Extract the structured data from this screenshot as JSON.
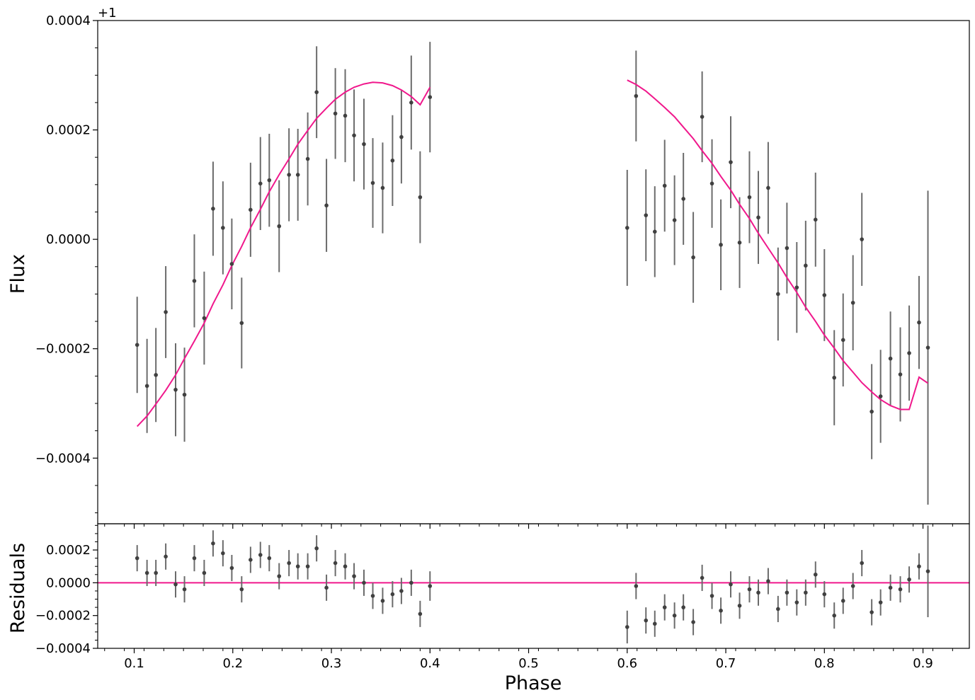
{
  "chart_data": [
    {
      "type": "scatter",
      "panel": "flux",
      "ylabel": "Flux",
      "y_offset_label": "+1",
      "xlim": [
        0.063,
        0.947
      ],
      "ylim": [
        -0.00052,
        0.0004
      ],
      "yticks": [
        -0.0004,
        -0.0002,
        0.0,
        0.0002,
        0.0004
      ],
      "ytick_labels": [
        "−0.0004",
        "−0.0002",
        "0.0000",
        "0.0002",
        "0.0004"
      ],
      "data_color": "#404040",
      "model_color": "#f0188c",
      "points": {
        "x": [
          0.103,
          0.113,
          0.122,
          0.132,
          0.142,
          0.151,
          0.161,
          0.171,
          0.18,
          0.19,
          0.199,
          0.209,
          0.218,
          0.228,
          0.237,
          0.247,
          0.257,
          0.266,
          0.276,
          0.285,
          0.295,
          0.304,
          0.314,
          0.323,
          0.333,
          0.342,
          0.352,
          0.362,
          0.371,
          0.381,
          0.39,
          0.4,
          0.6,
          0.609,
          0.619,
          0.628,
          0.638,
          0.648,
          0.657,
          0.667,
          0.676,
          0.686,
          0.695,
          0.705,
          0.714,
          0.724,
          0.733,
          0.743,
          0.753,
          0.762,
          0.772,
          0.781,
          0.791,
          0.8,
          0.81,
          0.819,
          0.829,
          0.838,
          0.848,
          0.857,
          0.867,
          0.877,
          0.886,
          0.896,
          0.905
        ],
        "y": [
          -0.000193,
          -0.000268,
          -0.000248,
          -0.000133,
          -0.000275,
          -0.000284,
          -7.6e-05,
          -0.000144,
          5.6e-05,
          2.1e-05,
          -4.5e-05,
          -0.000153,
          5.4e-05,
          0.000102,
          0.000108,
          2.4e-05,
          0.000118,
          0.000118,
          0.000147,
          0.000269,
          6.2e-05,
          0.00023,
          0.000226,
          0.00019,
          0.000174,
          0.000103,
          9.4e-05,
          0.000144,
          0.000187,
          0.00025,
          7.7e-05,
          0.00026,
          2.1e-05,
          0.000262,
          4.4e-05,
          1.4e-05,
          9.8e-05,
          3.5e-05,
          7.4e-05,
          -3.3e-05,
          0.000224,
          0.000102,
          -1e-05,
          0.000141,
          -6e-06,
          7.7e-05,
          4e-05,
          9.4e-05,
          -0.0001,
          -1.6e-05,
          -8.8e-05,
          -4.8e-05,
          3.6e-05,
          -0.000102,
          -0.000253,
          -0.000184,
          -0.000116,
          0.0,
          -0.000315,
          -0.000287,
          -0.000218,
          -0.000247,
          -0.000208,
          -0.000152,
          -0.000198
        ],
        "yerr": [
          8.8e-05,
          8.6e-05,
          8.6e-05,
          8.4e-05,
          8.5e-05,
          8.6e-05,
          8.5e-05,
          8.5e-05,
          8.6e-05,
          8.5e-05,
          8.3e-05,
          8.3e-05,
          8.6e-05,
          8.5e-05,
          8.5e-05,
          8.4e-05,
          8.5e-05,
          8.4e-05,
          8.5e-05,
          8.4e-05,
          8.5e-05,
          8.3e-05,
          8.5e-05,
          8.4e-05,
          8.3e-05,
          8.2e-05,
          8.3e-05,
          8.3e-05,
          8.5e-05,
          8.6e-05,
          8.4e-05,
          0.000101,
          0.000106,
          8.3e-05,
          8.4e-05,
          8.3e-05,
          8.4e-05,
          8.2e-05,
          8.4e-05,
          8.3e-05,
          8.3e-05,
          8.1e-05,
          8.3e-05,
          8.4e-05,
          8.3e-05,
          8.4e-05,
          8.5e-05,
          8.4e-05,
          8.5e-05,
          8.3e-05,
          8.3e-05,
          8.2e-05,
          8.6e-05,
          8.4e-05,
          8.7e-05,
          8.5e-05,
          8.7e-05,
          8.5e-05,
          8.7e-05,
          8.5e-05,
          8.6e-05,
          8.6e-05,
          8.7e-05,
          8.5e-05,
          0.000287
        ]
      },
      "model": {
        "segments": [
          {
            "x": [
              0.103,
              0.113,
              0.122,
              0.132,
              0.142,
              0.151,
              0.161,
              0.171,
              0.18,
              0.19,
              0.199,
              0.209,
              0.218,
              0.228,
              0.237,
              0.247,
              0.257,
              0.266,
              0.276,
              0.285,
              0.295,
              0.304,
              0.314,
              0.323,
              0.333,
              0.342,
              0.352,
              0.362,
              0.371,
              0.381,
              0.39,
              0.4
            ],
            "y": [
              -0.000342,
              -0.000323,
              -0.000301,
              -0.000276,
              -0.000248,
              -0.000218,
              -0.000186,
              -0.000153,
              -0.000118,
              -8.3e-05,
              -4.8e-05,
              -1.3e-05,
              2.1e-05,
              5.5e-05,
              8.7e-05,
              0.000118,
              0.000147,
              0.000174,
              0.000199,
              0.000221,
              0.00024,
              0.000256,
              0.000269,
              0.000278,
              0.000284,
              0.000287,
              0.000286,
              0.000281,
              0.000273,
              0.000261,
              0.000246,
              0.000278
            ]
          },
          {
            "x": [
              0.6,
              0.609,
              0.619,
              0.628,
              0.638,
              0.648,
              0.657,
              0.667,
              0.676,
              0.686,
              0.695,
              0.705,
              0.714,
              0.724,
              0.733,
              0.743,
              0.753,
              0.762,
              0.772,
              0.781,
              0.791,
              0.8,
              0.81,
              0.819,
              0.829,
              0.838,
              0.848,
              0.857,
              0.867,
              0.877,
              0.886,
              0.896,
              0.905
            ],
            "y": [
              0.000291,
              0.000283,
              0.000271,
              0.000257,
              0.000241,
              0.000224,
              0.000205,
              0.000184,
              0.000162,
              0.000139,
              0.000115,
              9e-05,
              6.4e-05,
              3.8e-05,
              1.1e-05,
              -1.6e-05,
              -4.3e-05,
              -7e-05,
              -9.7e-05,
              -0.000124,
              -0.00015,
              -0.000175,
              -0.000199,
              -0.000222,
              -0.000243,
              -0.000262,
              -0.000279,
              -0.000293,
              -0.000304,
              -0.000311,
              -0.000311,
              -0.000252,
              -0.000263
            ]
          }
        ]
      }
    },
    {
      "type": "scatter",
      "panel": "residuals",
      "ylabel": "Residuals",
      "xlabel": "Phase",
      "xlim": [
        0.063,
        0.947
      ],
      "ylim": [
        -0.0004,
        0.00036
      ],
      "yticks": [
        -0.0004,
        -0.0002,
        0.0,
        0.0002
      ],
      "ytick_labels": [
        "−0.0004",
        "−0.0002",
        "0.0000",
        "0.0002"
      ],
      "xticks": [
        0.1,
        0.2,
        0.3,
        0.4,
        0.5,
        0.6,
        0.7,
        0.8,
        0.9
      ],
      "xtick_labels": [
        "0.1",
        "0.2",
        "0.3",
        "0.4",
        "0.5",
        "0.6",
        "0.7",
        "0.8",
        "0.9"
      ],
      "zero_line": 0.0,
      "data_color": "#404040",
      "model_color": "#f0188c",
      "points": {
        "x": [
          0.103,
          0.113,
          0.122,
          0.132,
          0.142,
          0.151,
          0.161,
          0.171,
          0.18,
          0.19,
          0.199,
          0.209,
          0.218,
          0.228,
          0.237,
          0.247,
          0.257,
          0.266,
          0.276,
          0.285,
          0.295,
          0.304,
          0.314,
          0.323,
          0.333,
          0.342,
          0.352,
          0.362,
          0.371,
          0.381,
          0.39,
          0.4,
          0.6,
          0.609,
          0.619,
          0.628,
          0.638,
          0.648,
          0.657,
          0.667,
          0.676,
          0.686,
          0.695,
          0.705,
          0.714,
          0.724,
          0.733,
          0.743,
          0.753,
          0.762,
          0.772,
          0.781,
          0.791,
          0.8,
          0.81,
          0.819,
          0.829,
          0.838,
          0.848,
          0.857,
          0.867,
          0.877,
          0.886,
          0.896,
          0.905
        ],
        "y": [
          0.00015,
          6e-05,
          6e-05,
          0.00016,
          -1e-05,
          -4e-05,
          0.00015,
          6e-05,
          0.00024,
          0.00018,
          9e-05,
          -4e-05,
          0.00014,
          0.00017,
          0.00015,
          4e-05,
          0.00012,
          0.0001,
          0.0001,
          0.00021,
          -3e-05,
          0.00012,
          0.0001,
          4e-05,
          0.0,
          -8e-05,
          -0.00011,
          -7e-05,
          -5e-05,
          0.0,
          -0.00019,
          -2e-05,
          -0.00027,
          -2e-05,
          -0.00023,
          -0.00025,
          -0.00015,
          -0.0002,
          -0.00015,
          -0.00024,
          3e-05,
          -8e-05,
          -0.00017,
          -1e-05,
          -0.00014,
          -4e-05,
          -6e-05,
          1e-05,
          -0.00016,
          -6e-05,
          -0.00012,
          -6e-05,
          5e-05,
          -7e-05,
          -0.0002,
          -0.00011,
          -2e-05,
          0.00012,
          -0.00018,
          -0.00012,
          -3e-05,
          -4e-05,
          2e-05,
          0.0001,
          7e-05
        ],
        "yerr": [
          8e-05,
          8e-05,
          8e-05,
          8e-05,
          8e-05,
          8e-05,
          8e-05,
          8e-05,
          8e-05,
          8e-05,
          8e-05,
          8e-05,
          8e-05,
          8e-05,
          8e-05,
          8e-05,
          8e-05,
          8e-05,
          8e-05,
          8e-05,
          8e-05,
          8e-05,
          8e-05,
          8e-05,
          8e-05,
          8e-05,
          8e-05,
          8e-05,
          8e-05,
          8e-05,
          8e-05,
          9e-05,
          0.0001,
          8e-05,
          8e-05,
          8e-05,
          8e-05,
          8e-05,
          8e-05,
          8e-05,
          8e-05,
          8e-05,
          8e-05,
          8e-05,
          8e-05,
          8e-05,
          8e-05,
          8e-05,
          8e-05,
          8e-05,
          8e-05,
          8e-05,
          8e-05,
          8e-05,
          8e-05,
          8e-05,
          8e-05,
          8e-05,
          8e-05,
          8e-05,
          8e-05,
          8e-05,
          8e-05,
          8e-05,
          0.00028
        ]
      }
    }
  ]
}
